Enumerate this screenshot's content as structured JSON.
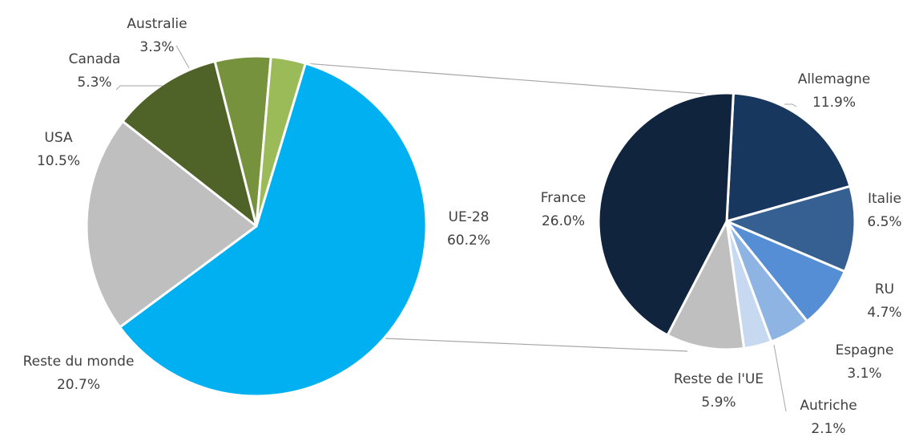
{
  "chart_data": [
    {
      "type": "pie",
      "slices": [
        {
          "name": "UE-28",
          "value": 60.2,
          "label": "60.2%",
          "color": "#00b0f0"
        },
        {
          "name": "Reste du monde",
          "value": 20.7,
          "label": "20.7%",
          "color": "#bfbfbf"
        },
        {
          "name": "USA",
          "value": 10.5,
          "label": "10.5%",
          "color": "#4f6228"
        },
        {
          "name": "Canada",
          "value": 5.3,
          "label": "5.3%",
          "color": "#76923c"
        },
        {
          "name": "Australie",
          "value": 3.3,
          "label": "3.3%",
          "color": "#9bbb59"
        }
      ]
    },
    {
      "type": "pie",
      "slices": [
        {
          "name": "Allemagne",
          "value": 11.9,
          "label": "11.9%",
          "color": "#17375e"
        },
        {
          "name": "Italie",
          "value": 6.5,
          "label": "6.5%",
          "color": "#366092"
        },
        {
          "name": "RU",
          "value": 4.7,
          "label": "4.7%",
          "color": "#558ed5"
        },
        {
          "name": "Espagne",
          "value": 3.1,
          "label": "3.1%",
          "color": "#8eb4e3"
        },
        {
          "name": "Autriche",
          "value": 2.1,
          "label": "2.1%",
          "color": "#c6d9f1"
        },
        {
          "name": "Reste de l'UE",
          "value": 5.9,
          "label": "5.9%",
          "color": "#bfbfbf"
        },
        {
          "name": "France",
          "value": 26.0,
          "label": "26.0%",
          "color": "#10243e"
        }
      ]
    }
  ]
}
